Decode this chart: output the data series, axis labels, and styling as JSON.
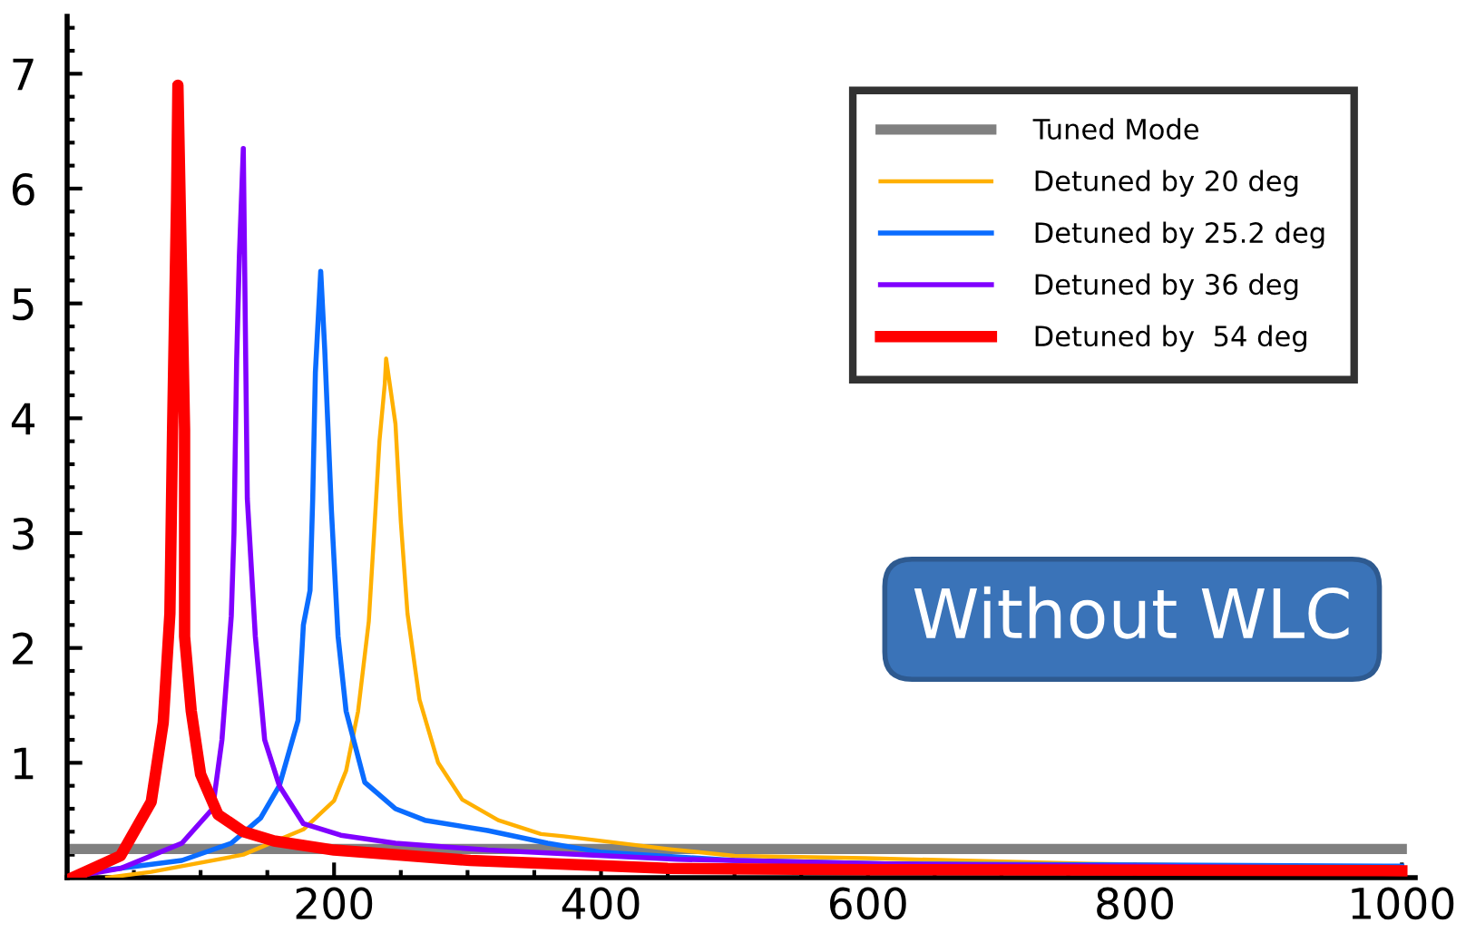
{
  "chart_data": {
    "type": "line",
    "xlim": [
      0,
      1010
    ],
    "ylim": [
      0,
      7.5
    ],
    "xticks": [
      200,
      400,
      600,
      800,
      1000
    ],
    "yticks": [
      1,
      2,
      3,
      4,
      5,
      6,
      7
    ],
    "grid": false,
    "legend": "top right",
    "marker": "none",
    "line_style": "solid",
    "annotations": [
      "Without WLC"
    ],
    "series": [
      {
        "name": "Tuned Mode",
        "color": "#808080",
        "x": [
          0,
          1000
        ],
        "values": [
          0.25,
          0.25
        ]
      },
      {
        "name": "Detuned by 20 deg",
        "color": "#ffb000",
        "x": [
          30,
          63,
          132,
          177,
          200,
          209,
          218,
          226,
          230,
          234,
          238,
          239,
          246,
          250,
          255,
          264,
          278,
          296,
          323,
          355,
          372,
          450,
          500,
          598,
          767,
          1000
        ],
        "values": [
          0,
          0.05,
          0.2,
          0.42,
          0.67,
          0.93,
          1.45,
          2.23,
          3.0,
          3.8,
          4.3,
          4.52,
          3.95,
          3.1,
          2.3,
          1.55,
          1.0,
          0.68,
          0.5,
          0.38,
          0.36,
          0.25,
          0.19,
          0.17,
          0.12,
          0.08
        ]
      },
      {
        "name": "Detuned by 25.2 deg",
        "color": "#0a6cff",
        "x": [
          10,
          18,
          86,
          123,
          145,
          159,
          173,
          177,
          182,
          184,
          186,
          190,
          193,
          198,
          203,
          209,
          223,
          246,
          268,
          315,
          360,
          401,
          500,
          613,
          1000
        ],
        "values": [
          0,
          0.05,
          0.15,
          0.3,
          0.52,
          0.8,
          1.37,
          2.2,
          2.5,
          3.3,
          4.4,
          5.28,
          4.6,
          3.2,
          2.1,
          1.45,
          0.83,
          0.6,
          0.5,
          0.41,
          0.3,
          0.22,
          0.15,
          0.12,
          0.1
        ]
      },
      {
        "name": "Detuned by 36 deg",
        "color": "#8000ff",
        "x": [
          0,
          40,
          86,
          109,
          116,
          123,
          125,
          127,
          129,
          132,
          135,
          141,
          148,
          159,
          177,
          205,
          246,
          315,
          457,
          613,
          1000
        ],
        "values": [
          0,
          0.08,
          0.3,
          0.6,
          1.2,
          2.28,
          3.0,
          4.5,
          5.4,
          6.35,
          3.3,
          2.1,
          1.2,
          0.8,
          0.47,
          0.37,
          0.3,
          0.24,
          0.16,
          0.12,
          0.08
        ]
      },
      {
        "name": "Detuned by  54 deg",
        "color": "#ff0000",
        "x": [
          4,
          40,
          63,
          72,
          77,
          79,
          82,
          83,
          88,
          88,
          93,
          100,
          113,
          132,
          155,
          200,
          302,
          450,
          600,
          1000
        ],
        "values": [
          0,
          0.19,
          0.66,
          1.35,
          2.3,
          3.9,
          5.9,
          6.9,
          3.9,
          2.1,
          1.45,
          0.9,
          0.55,
          0.4,
          0.32,
          0.24,
          0.15,
          0.08,
          0.07,
          0.06
        ]
      }
    ]
  }
}
